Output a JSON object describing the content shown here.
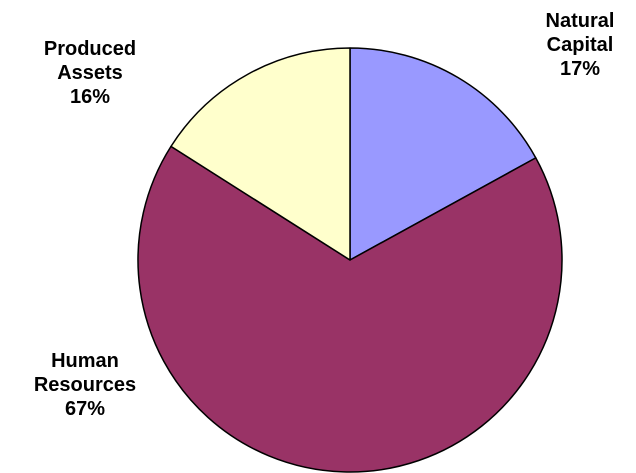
{
  "chart_data": {
    "type": "pie",
    "title": "",
    "slices": [
      {
        "line1": "Natural",
        "line2": "Capital",
        "pct": "17%",
        "value": 17,
        "color": "#9999ff"
      },
      {
        "line1": "Human",
        "line2": "Resources",
        "pct": "67%",
        "value": 67,
        "color": "#993366"
      },
      {
        "line1": "Produced",
        "line2": "Assets",
        "pct": "16%",
        "value": 16,
        "color": "#ffffcc"
      }
    ],
    "start_angle_deg": 0,
    "direction": "clockwise",
    "legend": "none"
  }
}
